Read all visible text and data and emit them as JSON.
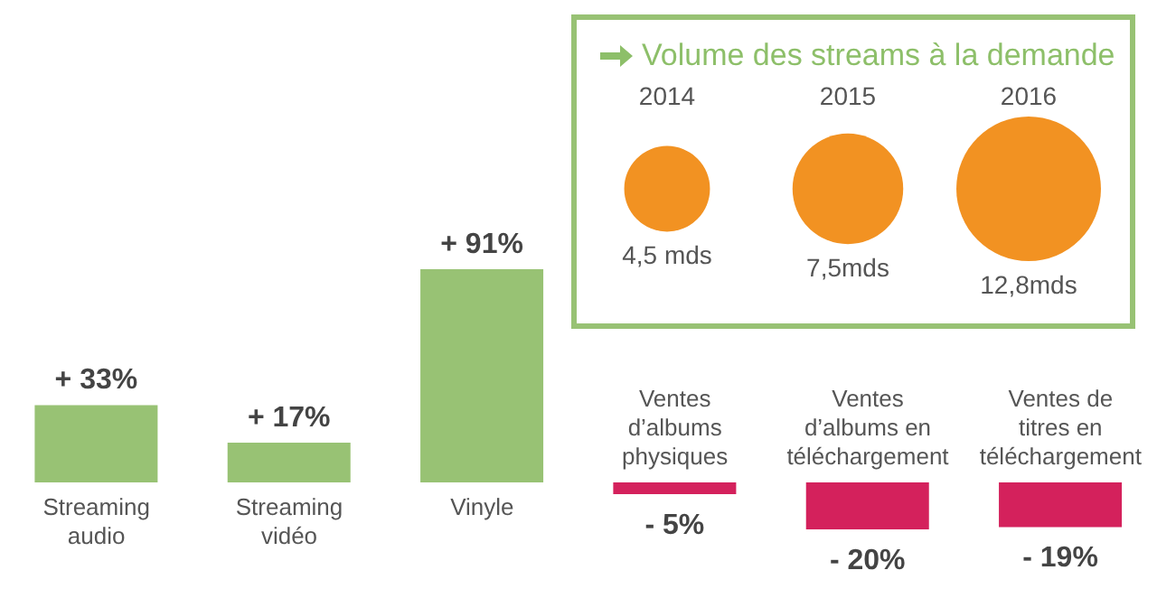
{
  "chart_data": [
    {
      "type": "bar",
      "categories": [
        "Streaming audio",
        "Streaming vidéo",
        "Vinyle",
        "Ventes d’albums physiques",
        "Ventes d’albums en téléchargement",
        "Ventes de titres en téléchargement"
      ],
      "values": [
        33,
        17,
        91,
        -5,
        -20,
        -19
      ],
      "colors": [
        "#98c274",
        "#98c274",
        "#98c274",
        "#d4215c",
        "#d4215c",
        "#d4215c"
      ],
      "value_labels": [
        "+ 33%",
        "+ 17%",
        "+ 91%",
        "- 5%",
        "- 20%",
        "- 19%"
      ]
    },
    {
      "type": "other",
      "title": "Volume des streams à la demande",
      "categories": [
        "2014",
        "2015",
        "2016"
      ],
      "values": [
        4.5,
        7.5,
        12.8
      ],
      "color": "#f29222",
      "value_labels": [
        "4,5 mds",
        "7,5mds",
        "12,8mds"
      ]
    }
  ]
}
